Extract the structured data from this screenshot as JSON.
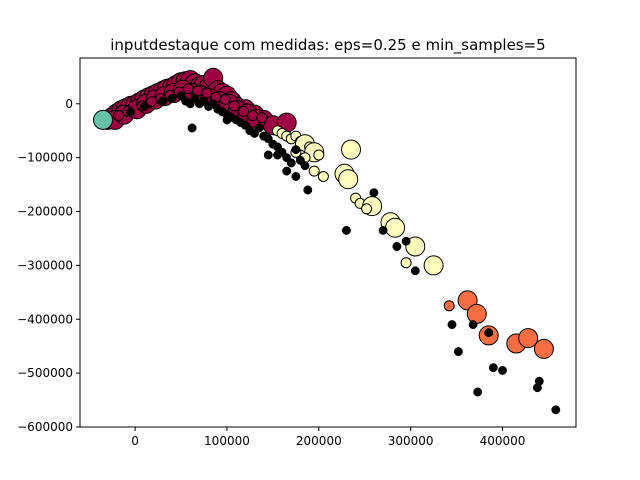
{
  "chart_data": {
    "type": "scatter",
    "title": "inputdestaque com medidas: eps=0.25 e min_samples=5",
    "xlabel": "",
    "ylabel": "",
    "xlim": [
      -60000,
      480000
    ],
    "ylim": [
      -600000,
      85000
    ],
    "x_ticks": [
      0,
      100000,
      200000,
      300000,
      400000
    ],
    "y_ticks": [
      0,
      -100000,
      -200000,
      -300000,
      -400000,
      -500000,
      -600000
    ],
    "grid": false,
    "legend": "none",
    "colors": {
      "cluster_crimson": "#9e0142",
      "cluster_green": "#66c2a5",
      "cluster_yellow": "#ffffbf",
      "cluster_orange": "#f46d43",
      "noise": "#000000",
      "edge": "#000000"
    },
    "series": [
      {
        "color_key": "cluster_crimson",
        "points": [
          [
            -30000,
            -30000,
            "L"
          ],
          [
            -25000,
            -25000,
            "L"
          ],
          [
            -20000,
            -18000,
            "L"
          ],
          [
            -15000,
            -12000,
            "L"
          ],
          [
            -10000,
            -8000,
            "L"
          ],
          [
            -5000,
            -4000,
            "L"
          ],
          [
            0,
            -2000,
            "L"
          ],
          [
            5000,
            3000,
            "L"
          ],
          [
            10000,
            8000,
            "L"
          ],
          [
            15000,
            12000,
            "L"
          ],
          [
            20000,
            16000,
            "L"
          ],
          [
            25000,
            20000,
            "L"
          ],
          [
            30000,
            24000,
            "L"
          ],
          [
            35000,
            28000,
            "L"
          ],
          [
            40000,
            30000,
            "L"
          ],
          [
            45000,
            35000,
            "L"
          ],
          [
            50000,
            40000,
            "L"
          ],
          [
            55000,
            42000,
            "L"
          ],
          [
            60000,
            44000,
            "L"
          ],
          [
            65000,
            38000,
            "L"
          ],
          [
            70000,
            32000,
            "L"
          ],
          [
            75000,
            35000,
            "L"
          ],
          [
            80000,
            30000,
            "L"
          ],
          [
            85000,
            48000,
            "L"
          ],
          [
            90000,
            25000,
            "L"
          ],
          [
            95000,
            20000,
            "L"
          ],
          [
            100000,
            15000,
            "L"
          ],
          [
            105000,
            5000,
            "L"
          ],
          [
            110000,
            -5000,
            "L"
          ],
          [
            115000,
            -15000,
            "L"
          ],
          [
            120000,
            -10000,
            "L"
          ],
          [
            125000,
            -25000,
            "L"
          ],
          [
            130000,
            -20000,
            "L"
          ],
          [
            140000,
            -30000,
            "L"
          ],
          [
            150000,
            -40000,
            "L"
          ],
          [
            165000,
            -35000,
            "L"
          ],
          [
            -22000,
            -30000,
            "L"
          ],
          [
            -12000,
            -20000,
            "L"
          ],
          [
            2000,
            -10000,
            "L"
          ],
          [
            12000,
            0,
            "L"
          ],
          [
            22000,
            8000,
            "L"
          ],
          [
            32000,
            14000,
            "L"
          ],
          [
            42000,
            20000,
            "L"
          ],
          [
            52000,
            26000,
            "L"
          ],
          [
            62000,
            20000,
            "L"
          ],
          [
            72000,
            16000,
            "L"
          ],
          [
            82000,
            10000,
            "L"
          ],
          [
            92000,
            5000,
            "L"
          ],
          [
            102000,
            0,
            "L"
          ],
          [
            112000,
            -12000,
            "L"
          ],
          [
            122000,
            -18000,
            "L"
          ],
          [
            132000,
            -28000,
            "L"
          ],
          [
            -18000,
            -22000,
            "S"
          ],
          [
            -8000,
            -14000,
            "S"
          ],
          [
            8000,
            -4000,
            "S"
          ],
          [
            18000,
            4000,
            "S"
          ],
          [
            28000,
            10000,
            "S"
          ],
          [
            38000,
            16000,
            "S"
          ],
          [
            48000,
            22000,
            "S"
          ],
          [
            58000,
            28000,
            "S"
          ],
          [
            68000,
            24000,
            "S"
          ],
          [
            78000,
            20000,
            "S"
          ],
          [
            88000,
            12000,
            "S"
          ],
          [
            98000,
            8000,
            "S"
          ],
          [
            108000,
            -4000,
            "S"
          ],
          [
            118000,
            -14000,
            "S"
          ],
          [
            128000,
            -22000,
            "S"
          ],
          [
            138000,
            -26000,
            "S"
          ]
        ]
      },
      {
        "color_key": "cluster_green",
        "points": [
          [
            -35000,
            -30000,
            "L"
          ]
        ]
      },
      {
        "color_key": "cluster_yellow",
        "points": [
          [
            155000,
            -50000,
            "S"
          ],
          [
            160000,
            -55000,
            "S"
          ],
          [
            165000,
            -60000,
            "S"
          ],
          [
            170000,
            -65000,
            "S"
          ],
          [
            175000,
            -60000,
            "S"
          ],
          [
            180000,
            -70000,
            "S"
          ],
          [
            185000,
            -75000,
            "L"
          ],
          [
            190000,
            -80000,
            "S"
          ],
          [
            195000,
            -90000,
            "L"
          ],
          [
            180000,
            -95000,
            "S"
          ],
          [
            175000,
            -90000,
            "S"
          ],
          [
            185000,
            -100000,
            "S"
          ],
          [
            200000,
            -95000,
            "S"
          ],
          [
            195000,
            -125000,
            "S"
          ],
          [
            205000,
            -135000,
            "S"
          ],
          [
            235000,
            -85000,
            "L"
          ],
          [
            228000,
            -130000,
            "L"
          ],
          [
            232000,
            -140000,
            "L"
          ],
          [
            240000,
            -175000,
            "S"
          ],
          [
            245000,
            -185000,
            "S"
          ],
          [
            258000,
            -190000,
            "L"
          ],
          [
            252000,
            -195000,
            "S"
          ],
          [
            278000,
            -220000,
            "L"
          ],
          [
            283000,
            -230000,
            "L"
          ],
          [
            305000,
            -265000,
            "L"
          ],
          [
            295000,
            -295000,
            "S"
          ],
          [
            325000,
            -300000,
            "L"
          ]
        ]
      },
      {
        "color_key": "cluster_orange",
        "points": [
          [
            342000,
            -375000,
            "S"
          ],
          [
            362000,
            -365000,
            "L"
          ],
          [
            372000,
            -390000,
            "L"
          ],
          [
            385000,
            -430000,
            "L"
          ],
          [
            415000,
            -445000,
            "L"
          ],
          [
            428000,
            -435000,
            "L"
          ],
          [
            445000,
            -455000,
            "L"
          ]
        ]
      },
      {
        "color_key": "noise",
        "points": [
          [
            -5000,
            -15000,
            "S"
          ],
          [
            10000,
            -5000,
            "S"
          ],
          [
            30000,
            5000,
            "S"
          ],
          [
            40000,
            10000,
            "S"
          ],
          [
            50000,
            15000,
            "S"
          ],
          [
            55000,
            5000,
            "S"
          ],
          [
            60000,
            0,
            "S"
          ],
          [
            65000,
            10000,
            "S"
          ],
          [
            70000,
            0,
            "S"
          ],
          [
            75000,
            5000,
            "S"
          ],
          [
            80000,
            -5000,
            "S"
          ],
          [
            85000,
            0,
            "S"
          ],
          [
            90000,
            -10000,
            "S"
          ],
          [
            95000,
            -15000,
            "S"
          ],
          [
            100000,
            -20000,
            "S"
          ],
          [
            105000,
            -25000,
            "S"
          ],
          [
            110000,
            -30000,
            "S"
          ],
          [
            115000,
            -35000,
            "S"
          ],
          [
            120000,
            -40000,
            "S"
          ],
          [
            125000,
            -50000,
            "S"
          ],
          [
            130000,
            -55000,
            "S"
          ],
          [
            135000,
            -45000,
            "S"
          ],
          [
            140000,
            -60000,
            "S"
          ],
          [
            145000,
            -65000,
            "S"
          ],
          [
            150000,
            -75000,
            "S"
          ],
          [
            155000,
            -80000,
            "S"
          ],
          [
            160000,
            -90000,
            "S"
          ],
          [
            165000,
            -100000,
            "S"
          ],
          [
            170000,
            -110000,
            "S"
          ],
          [
            175000,
            -85000,
            "S"
          ],
          [
            180000,
            -105000,
            "S"
          ],
          [
            165000,
            -125000,
            "S"
          ],
          [
            175000,
            -135000,
            "S"
          ],
          [
            185000,
            -115000,
            "S"
          ],
          [
            188000,
            -160000,
            "S"
          ],
          [
            62000,
            -45000,
            "S"
          ],
          [
            100000,
            -30000,
            "S"
          ],
          [
            145000,
            -95000,
            "S"
          ],
          [
            155000,
            -95000,
            "S"
          ],
          [
            230000,
            -235000,
            "S"
          ],
          [
            260000,
            -165000,
            "S"
          ],
          [
            270000,
            -235000,
            "S"
          ],
          [
            295000,
            -255000,
            "S"
          ],
          [
            285000,
            -265000,
            "S"
          ],
          [
            305000,
            -310000,
            "S"
          ],
          [
            345000,
            -410000,
            "S"
          ],
          [
            352000,
            -460000,
            "S"
          ],
          [
            368000,
            -410000,
            "S"
          ],
          [
            385000,
            -425000,
            "S"
          ],
          [
            390000,
            -490000,
            "S"
          ],
          [
            400000,
            -495000,
            "S"
          ],
          [
            373000,
            -535000,
            "S"
          ],
          [
            440000,
            -515000,
            "S"
          ],
          [
            438000,
            -527000,
            "S"
          ],
          [
            458000,
            -568000,
            "S"
          ]
        ]
      }
    ]
  }
}
